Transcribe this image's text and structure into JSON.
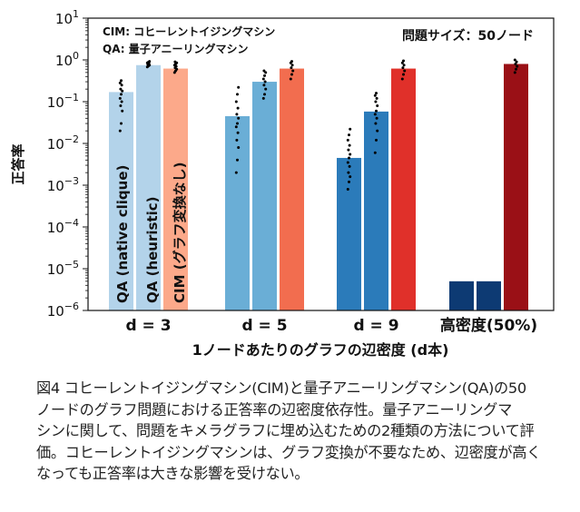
{
  "chart_data": {
    "type": "bar",
    "yscale": "log",
    "ylim": [
      1e-06,
      10
    ],
    "ylabel": "正答率",
    "xlabel": "1ノードあたりのグラフの辺密度 (d本)",
    "yticks": [
      {
        "value": 10,
        "base": "10",
        "exp": "1"
      },
      {
        "value": 1,
        "base": "10",
        "exp": "0"
      },
      {
        "value": 0.1,
        "base": "10",
        "exp": "−1"
      },
      {
        "value": 0.01,
        "base": "10",
        "exp": "−2"
      },
      {
        "value": 0.001,
        "base": "10",
        "exp": "−3"
      },
      {
        "value": 0.0001,
        "base": "10",
        "exp": "−4"
      },
      {
        "value": 1e-05,
        "base": "10",
        "exp": "−5"
      },
      {
        "value": 1e-06,
        "base": "10",
        "exp": "−6"
      }
    ],
    "legend": [
      "CIM: コヒーレントイジングマシン",
      "QA: 量子アニーリングマシン"
    ],
    "annotation": "問題サイズ：50ノード",
    "categories": [
      "d = 3",
      "d = 5",
      "d = 9",
      "高密度(50%)"
    ],
    "series": [
      {
        "name": "QA (native clique)",
        "values": [
          0.17,
          0.045,
          0.0045,
          5e-06
        ],
        "colors": [
          "#b3d3ea",
          "#6aaed6",
          "#2b7bba",
          "#0d3a73"
        ]
      },
      {
        "name": "QA (heuristic)",
        "values": [
          0.75,
          0.3,
          0.058,
          5e-06
        ],
        "colors": [
          "#b3d3ea",
          "#6aaed6",
          "#2b7bba",
          "#0d3a73"
        ]
      },
      {
        "name": "CIM (グラフ変換なし)",
        "values": [
          0.62,
          0.62,
          0.62,
          0.8
        ],
        "colors": [
          "#fca98a",
          "#f26d4f",
          "#e0302a",
          "#9a1016"
        ]
      }
    ],
    "points": [
      [
        [
          0.02,
          0.03,
          0.06,
          0.08,
          0.1,
          0.12,
          0.15,
          0.18,
          0.2,
          0.25,
          0.28,
          0.32
        ],
        [
          0.68,
          0.72,
          0.75,
          0.78,
          0.82,
          0.85,
          0.88,
          0.92
        ],
        [
          0.5,
          0.55,
          0.6,
          0.65,
          0.7,
          0.75,
          0.8,
          0.85,
          0.9
        ]
      ],
      [
        [
          0.002,
          0.004,
          0.008,
          0.012,
          0.018,
          0.025,
          0.03,
          0.04,
          0.05,
          0.07,
          0.1,
          0.15,
          0.22
        ],
        [
          0.12,
          0.15,
          0.2,
          0.25,
          0.3,
          0.35,
          0.42,
          0.5,
          0.55
        ],
        [
          0.35,
          0.45,
          0.55,
          0.65,
          0.75,
          0.85,
          0.92
        ]
      ],
      [
        [
          0.0008,
          0.0012,
          0.0016,
          0.002,
          0.0028,
          0.0035,
          0.0045,
          0.0055,
          0.007,
          0.009,
          0.012,
          0.016,
          0.022
        ],
        [
          0.006,
          0.012,
          0.02,
          0.03,
          0.04,
          0.05,
          0.06,
          0.08,
          0.1,
          0.12,
          0.14,
          0.16
        ],
        [
          0.35,
          0.45,
          0.55,
          0.65,
          0.75,
          0.85,
          0.95
        ]
      ],
      [
        [],
        [],
        [
          0.5,
          0.6,
          0.7,
          0.8,
          0.9,
          1.0
        ]
      ]
    ]
  },
  "caption": {
    "lines": [
      "図4 コヒーレントイジングマシン(CIM)と量子アニーリングマシン(QA)の50",
      "ノードのグラフ問題における正答率の辺密度依存性。量子アニーリングマ",
      "シンに関して、問題をキメラグラフに埋め込むための2種類の方法について評",
      "価。コヒーレントイジングマシンは、グラフ変換が不要なため、辺密度が高く",
      "なっても正答率は大きな影響を受けない。"
    ]
  }
}
